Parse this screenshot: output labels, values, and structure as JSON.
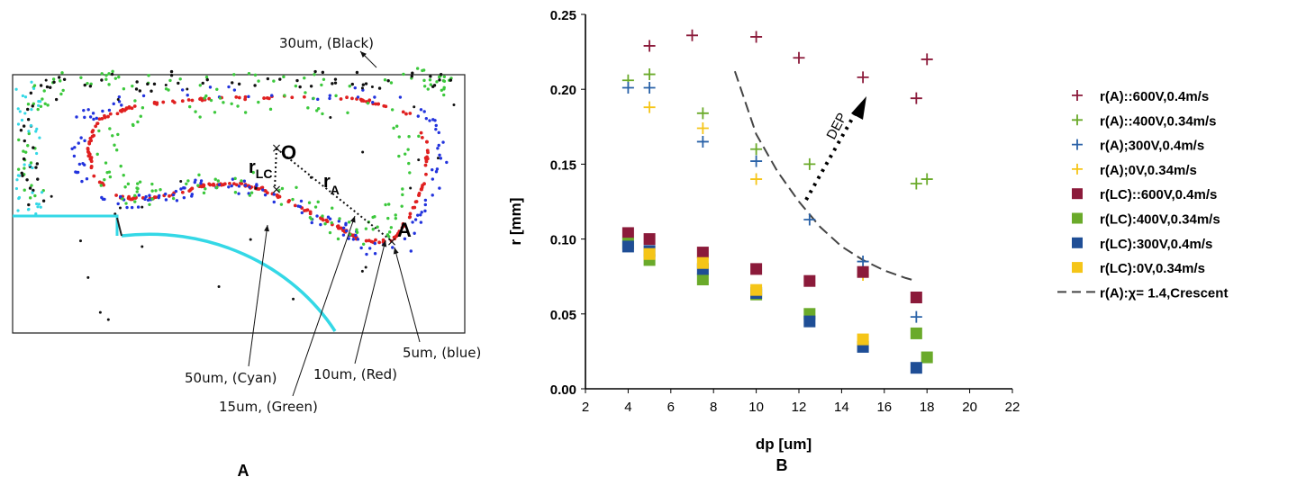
{
  "panel_a": {
    "label": "A",
    "origin_label": "O",
    "point_a_label": "A",
    "r_lc_main": "r",
    "r_lc_sub": "LC",
    "r_a_main": "r",
    "r_a_sub": "A",
    "annotations": {
      "black": "30um, (Black)",
      "cyan": "50um, (Cyan)",
      "green": "15um, (Green)",
      "red": "10um, (Red)",
      "blue": "5um, (blue)"
    },
    "colors": {
      "black": "#111111",
      "cyan": "#34d8e6",
      "green": "#3cc83c",
      "red": "#e02020",
      "blue": "#2233dd"
    }
  },
  "panel_b": {
    "label": "B",
    "annotation": "DEP"
  },
  "chart_data": {
    "type": "scatter",
    "xlabel": "dp [um]",
    "ylabel": "r [mm]",
    "xlim": [
      2,
      22
    ],
    "ylim": [
      0,
      0.25
    ],
    "xticks": [
      2,
      4,
      6,
      8,
      10,
      12,
      14,
      16,
      18,
      20,
      22
    ],
    "yticks": [
      "0.00",
      "0.05",
      "0.10",
      "0.15",
      "0.20",
      "0.25"
    ],
    "grid": false,
    "legend_position": "right",
    "series": [
      {
        "name": "r(A)::600V,0.4m/s",
        "marker": "plus",
        "color": "#8b1a3a",
        "x": [
          5,
          7,
          10,
          12,
          15,
          17.5,
          18
        ],
        "y": [
          0.229,
          0.236,
          0.235,
          0.221,
          0.208,
          0.194,
          0.22
        ]
      },
      {
        "name": "r(A)::400V,0.34m/s",
        "marker": "plus",
        "color": "#6aaa2a",
        "x": [
          4,
          5,
          7.5,
          10,
          12.5,
          17.5,
          18
        ],
        "y": [
          0.206,
          0.21,
          0.184,
          0.16,
          0.15,
          0.137,
          0.14
        ]
      },
      {
        "name": "r(A);300V,0.4m/s",
        "marker": "plus",
        "color": "#2a62a8",
        "x": [
          4,
          5,
          7.5,
          10,
          12.5,
          15,
          17.5
        ],
        "y": [
          0.201,
          0.201,
          0.165,
          0.152,
          0.113,
          0.085,
          0.048
        ]
      },
      {
        "name": "r(A);0V,0.34m/s",
        "marker": "plus",
        "color": "#f5c518",
        "x": [
          5,
          7.5,
          10,
          15
        ],
        "y": [
          0.188,
          0.174,
          0.14,
          0.076
        ]
      },
      {
        "name": "r(LC)::600V,0.4m/s",
        "marker": "square",
        "color": "#8b1a3a",
        "x": [
          4,
          5,
          7.5,
          10,
          12.5,
          15,
          17.5
        ],
        "y": [
          0.104,
          0.1,
          0.091,
          0.08,
          0.072,
          0.078,
          0.061
        ]
      },
      {
        "name": "r(LC):400V,0.34m/s",
        "marker": "square",
        "color": "#6aaa2a",
        "x": [
          4,
          5,
          7.5,
          10,
          12.5,
          17.5,
          18
        ],
        "y": [
          0.097,
          0.086,
          0.073,
          0.063,
          0.05,
          0.037,
          0.021
        ]
      },
      {
        "name": "r(LC):300V,0.4m/s",
        "marker": "square",
        "color": "#1f4e96",
        "x": [
          4,
          5,
          7.5,
          10,
          12.5,
          15,
          17.5
        ],
        "y": [
          0.095,
          0.092,
          0.08,
          0.064,
          0.045,
          0.028,
          0.014
        ]
      },
      {
        "name": "r(LC):0V,0.34m/s",
        "marker": "square",
        "color": "#f5c518",
        "x": [
          5,
          7.5,
          10,
          15
        ],
        "y": [
          0.09,
          0.084,
          0.066,
          0.033
        ]
      }
    ],
    "curve": {
      "name": "r(A):χ= 1.4,Crescent",
      "style": "dashed",
      "color": "#444444",
      "x": [
        9,
        10,
        11,
        12,
        13,
        14,
        15,
        16,
        17,
        17.5
      ],
      "y": [
        0.212,
        0.17,
        0.145,
        0.125,
        0.108,
        0.095,
        0.086,
        0.079,
        0.074,
        0.072
      ]
    }
  }
}
